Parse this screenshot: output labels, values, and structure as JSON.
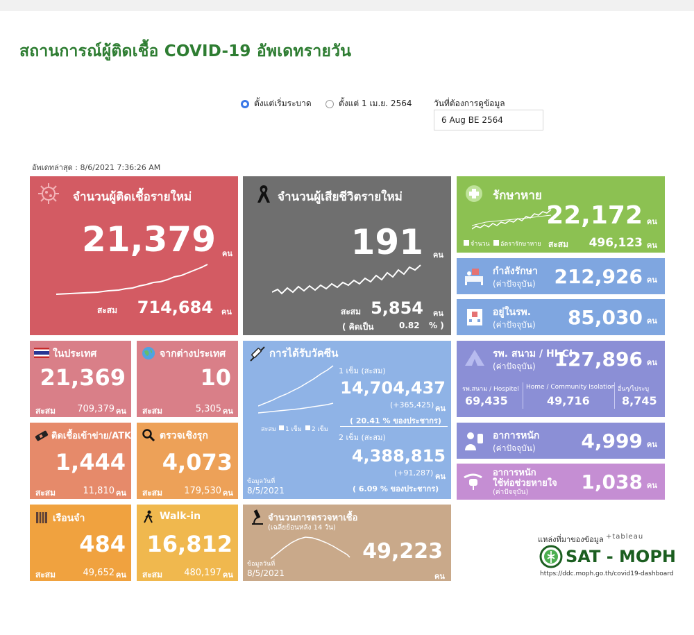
{
  "page": {
    "title": "สถานการณ์ผู้ติดเชื้อ COVID-19 อัพเดทรายวัน",
    "radio_options": [
      {
        "label": "ตั้งแต่เริ่มระบาด",
        "selected": true
      },
      {
        "label": "ตั้งแต่ 1 เม.ย. 2564",
        "selected": false
      }
    ],
    "date_label": "วันที่ต้องการดูข้อมูล",
    "date_value": "6 Aug BE 2564",
    "last_update": "อัพเดทล่าสุด : 8/6/2021 7:36:26 AM"
  },
  "colors": {
    "new_cases": "#d35b63",
    "deaths": "#6f6f6f",
    "recovered": "#8cc152",
    "blue": "#7fa6e0",
    "purple": "#8b8fd6",
    "vaccine": "#8fb3e6",
    "pink": "#d97f88",
    "orange": "#eda158",
    "yellow": "#f0b84e",
    "test": "#c9a98a"
  },
  "common": {
    "unit": "คน",
    "acc": "สะสม"
  },
  "new_cases": {
    "title": "จำนวนผู้ติดเชื้อรายใหม่",
    "value": "21,379",
    "acc_value": "714,684",
    "icon": "virus-icon"
  },
  "deaths": {
    "title": "จำนวนผู้เสียชีวิตรายใหม่",
    "value": "191",
    "acc_value": "5,854",
    "pct_prefix": "( คิดเป็น",
    "pct": "0.82",
    "pct_suffix": "% )",
    "icon": "ribbon-icon"
  },
  "recovered": {
    "title": "รักษาหาย",
    "value": "22,172",
    "acc_value": "496,123",
    "legend_a": "จำนวน",
    "legend_b": "อัตรารักษาหาย",
    "icon": "plus-icon"
  },
  "treating": {
    "title": "กำลังรักษา",
    "subtitle": "(ค่าปัจจุบัน)",
    "value": "212,926",
    "icon": "bed-icon"
  },
  "in_hospital": {
    "title": "อยู่ในรพ.",
    "subtitle": "(ค่าปัจจุบัน)",
    "value": "85,030",
    "icon": "hospital-icon"
  },
  "field_hospital": {
    "title": "รพ. สนาม / HI-CI",
    "subtitle": "(ค่าปัจจุบัน)",
    "value": "127,896",
    "icon": "tent-icon",
    "breakdown": [
      {
        "label": "รพ.สนาม / Hospitel",
        "value": "69,435"
      },
      {
        "label": "Home / Community Isolation",
        "value": "49,716"
      },
      {
        "label": "อื่นๆ/ไประบุ",
        "value": "8,745"
      }
    ]
  },
  "severe": {
    "title": "อาการหนัก",
    "subtitle": "(ค่าปัจจุบัน)",
    "value": "4,999",
    "icon": "patient-icon"
  },
  "ventilator": {
    "title_1": "อาการหนัก",
    "title_2": "ใช้ท่อช่วยหายใจ",
    "subtitle": "(ค่าปัจจุบัน)",
    "value": "1,038",
    "icon": "ventilator-icon"
  },
  "domestic": {
    "title": "ในประเทศ",
    "value": "21,369",
    "acc_value": "709,379",
    "icon": "thai-flag-icon"
  },
  "abroad": {
    "title": "จากต่างประเทศ",
    "value": "10",
    "acc_value": "5,305",
    "icon": "globe-icon"
  },
  "prison_atk": {
    "title": "ติดเชื้อเข้าข่าย/ATK",
    "value": "1,444",
    "acc_value": "11,810",
    "icon": "test-kit-icon"
  },
  "proactive": {
    "title": "ตรวจเชิงรุก",
    "value": "4,073",
    "acc_value": "179,530",
    "icon": "magnifier-icon"
  },
  "prison": {
    "title": "เรือนจำ",
    "value": "484",
    "acc_value": "49,652",
    "icon": "prison-icon"
  },
  "walkin": {
    "title": "Walk-in",
    "value": "16,812",
    "acc_value": "480,197",
    "icon": "walking-icon"
  },
  "vaccine": {
    "title": "การได้รับวัคซีน",
    "icon": "syringe-icon",
    "dose1_label": "1 เข็ม (สะสม)",
    "dose1_value": "14,704,437",
    "dose1_delta": "(+365,425)",
    "dose1_pct": "( 20.41 % ของประชากร)",
    "dose2_label": "2 เข็ม (สะสม)",
    "dose2_value": "4,388,815",
    "dose2_delta": "(+91,287)",
    "dose2_pct": "( 6.09 % ของประชากร)",
    "legend_acc": "สะสม",
    "legend_1": "1 เข็ม",
    "legend_2": "2 เข็ม",
    "data_date_label": "ข้อมูลวันที่",
    "data_date": "8/5/2021"
  },
  "lab_tests": {
    "title": "จำนวนการตรวจหาเชื้อ",
    "subtitle": "(เฉลี่ยย้อนหลัง 14 วัน)",
    "value": "49,223",
    "icon": "microscope-icon",
    "data_date_label": "ข้อมูลวันที่",
    "data_date": "8/5/2021"
  },
  "source": {
    "label": "แหล่งที่มาของข้อมูล",
    "tableau": "+tableau",
    "name": "SAT - MOPH",
    "url": "https://ddc.moph.go.th/covid19-dashboard",
    "logo": "moph-logo"
  }
}
